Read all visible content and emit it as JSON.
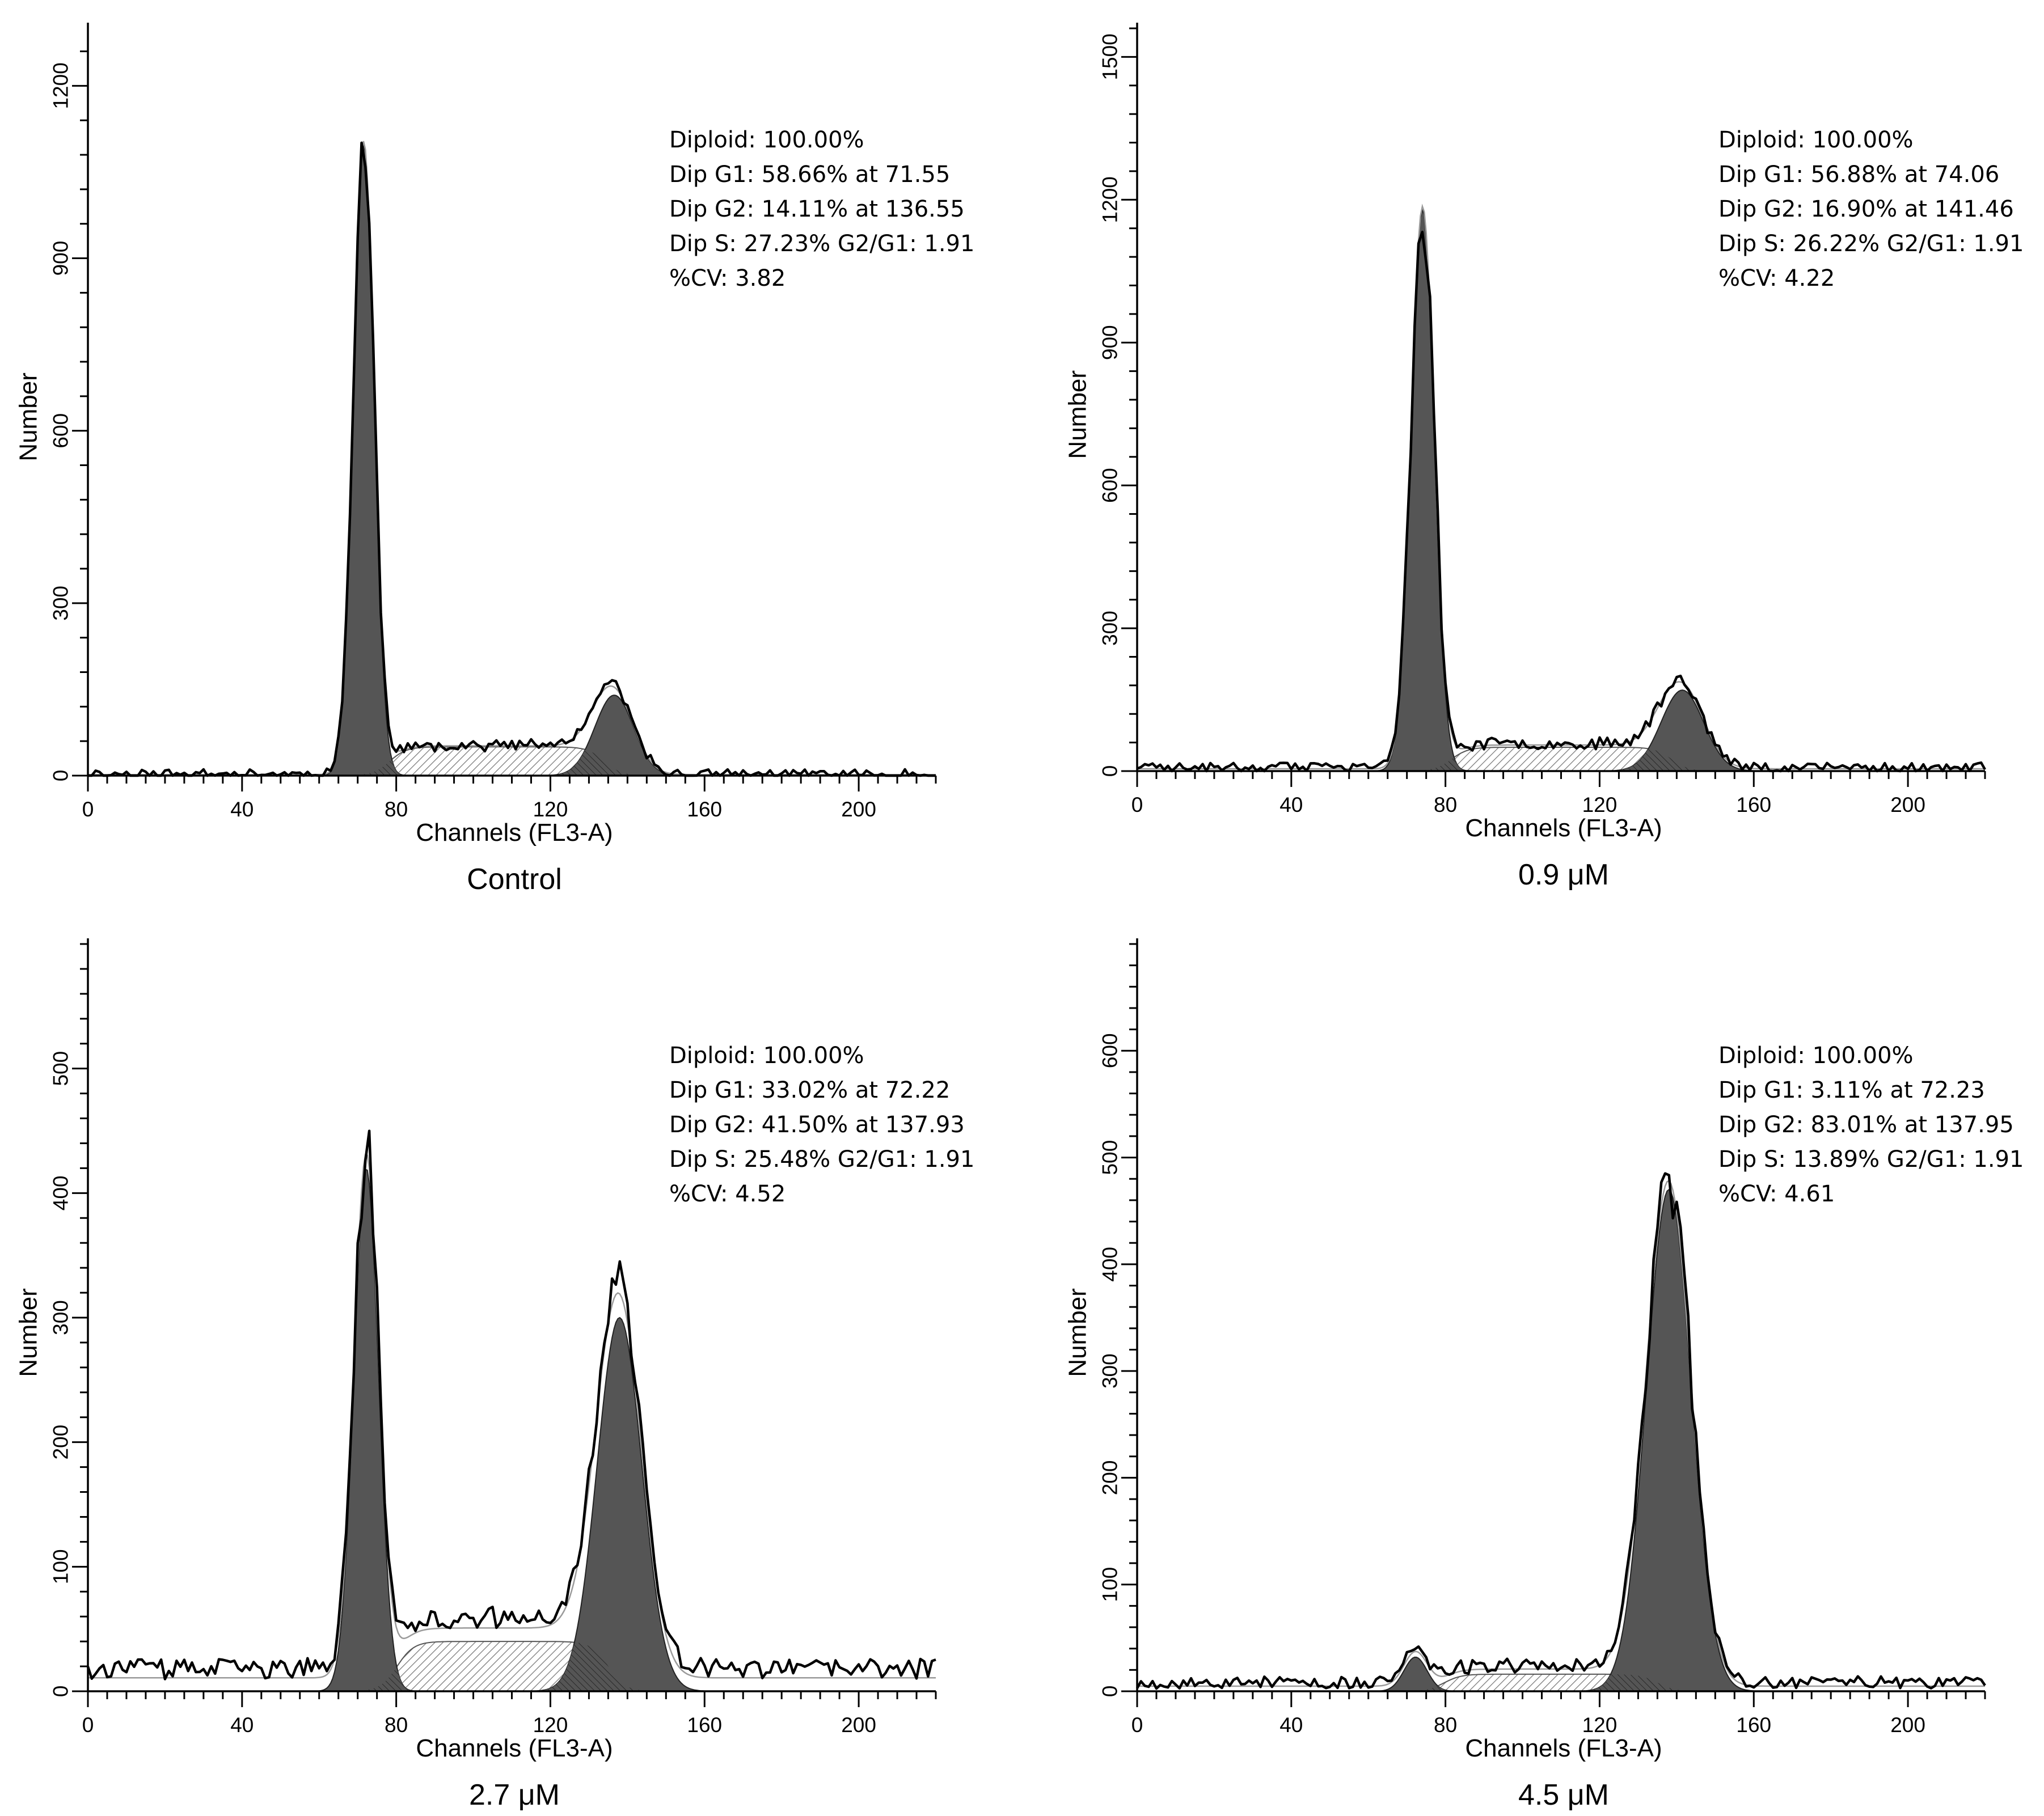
{
  "chart_data": [
    {
      "type": "area",
      "panel": "top-left",
      "caption": "Control",
      "xlabel": "Channels (FL3-A)",
      "ylabel": "Number",
      "xlim": [
        0,
        220
      ],
      "ylim": [
        0,
        1300
      ],
      "xticks": [
        0,
        40,
        80,
        120,
        160,
        200
      ],
      "yticks": [
        0,
        300,
        600,
        900,
        1200
      ],
      "stats": [
        "Diploid: 100.00%",
        "Dip G1: 58.66% at 71.55",
        "Dip G2: 14.11% at 136.55",
        "Dip S: 27.23%  G2/G1: 1.91",
        "%CV: 3.82"
      ],
      "model": {
        "g1_center": 71.55,
        "g1_height": 1100,
        "g1_sigma": 2.7,
        "g2_center": 136.55,
        "g2_height": 140,
        "g2_sigma": 5.0,
        "s_level": 50,
        "background": 3,
        "noise": 8,
        "seed": 11
      }
    },
    {
      "type": "area",
      "panel": "top-right",
      "caption": "0.9 μM",
      "xlabel": "Channels (FL3-A)",
      "ylabel": "Number",
      "xlim": [
        0,
        220
      ],
      "ylim": [
        0,
        1560
      ],
      "xticks": [
        0,
        40,
        80,
        120,
        160,
        200
      ],
      "yticks": [
        0,
        300,
        600,
        900,
        1200,
        1500
      ],
      "stats": [
        "Diploid: 100.00%",
        "Dip G1: 56.88% at 74.06",
        "Dip G2: 16.90% at 141.46",
        "Dip S: 26.22%  G2/G1: 1.91",
        "%CV: 4.22"
      ],
      "model": {
        "g1_center": 74.06,
        "g1_height": 1180,
        "g1_sigma": 3.0,
        "g2_center": 141.46,
        "g2_height": 170,
        "g2_sigma": 5.5,
        "s_level": 50,
        "background": 8,
        "noise": 10,
        "seed": 23
      }
    },
    {
      "type": "area",
      "panel": "bottom-left",
      "caption": "2.7 μM",
      "xlabel": "Channels (FL3-A)",
      "ylabel": "Number",
      "xlim": [
        0,
        220
      ],
      "ylim": [
        0,
        600
      ],
      "xticks": [
        0,
        40,
        80,
        120,
        160,
        200
      ],
      "yticks": [
        0,
        100,
        200,
        300,
        400,
        500
      ],
      "stats": [
        "Diploid: 100.00%",
        "Dip G1: 33.02% at 72.22",
        "Dip G2: 41.50% at 137.93",
        "Dip S: 25.48%  G2/G1: 1.91",
        "%CV: 4.52"
      ],
      "model": {
        "g1_center": 72.22,
        "g1_height": 420,
        "g1_sigma": 3.2,
        "g2_center": 137.93,
        "g2_height": 300,
        "g2_sigma": 5.8,
        "s_level": 40,
        "background": 18,
        "noise": 8,
        "seed": 37
      }
    },
    {
      "type": "area",
      "panel": "bottom-right",
      "caption": "4.5 μM",
      "xlabel": "Channels (FL3-A)",
      "ylabel": "Number",
      "xlim": [
        0,
        220
      ],
      "ylim": [
        0,
        700
      ],
      "xticks": [
        0,
        40,
        80,
        120,
        160,
        200
      ],
      "yticks": [
        0,
        100,
        200,
        300,
        400,
        500,
        600
      ],
      "stats": [
        "Diploid: 100.00%",
        "Dip G1: 3.11% at 72.23",
        "Dip G2: 83.01% at 137.95",
        "Dip S: 13.89%  G2/G1: 1.91",
        "%CV: 4.61"
      ],
      "model": {
        "g1_center": 72.23,
        "g1_height": 32,
        "g1_sigma": 3.0,
        "g2_center": 137.95,
        "g2_height": 470,
        "g2_sigma": 5.8,
        "s_level": 16,
        "background": 8,
        "noise": 6,
        "seed": 53
      }
    }
  ]
}
